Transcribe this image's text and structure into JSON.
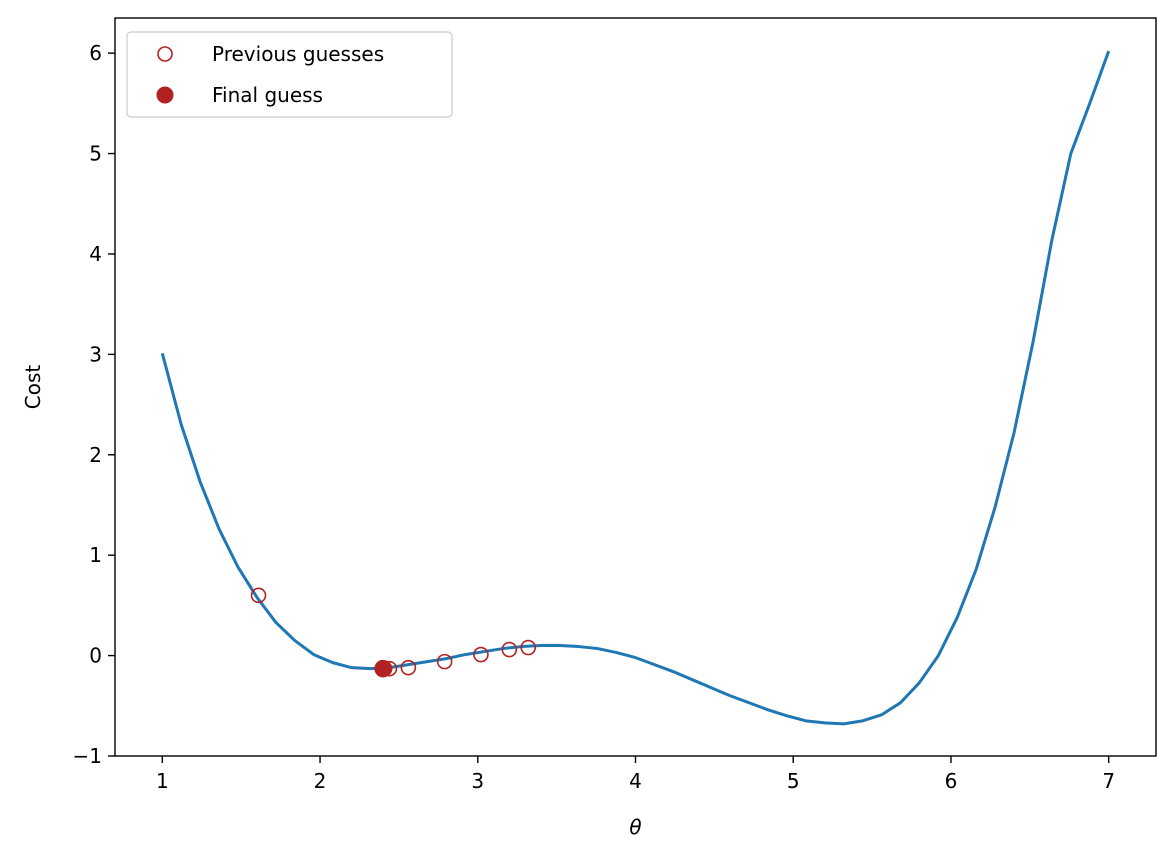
{
  "chart_data": {
    "type": "line",
    "xlabel": "θ",
    "ylabel": "Cost",
    "xlim": [
      0.7,
      7.3
    ],
    "ylim": [
      -1.0,
      6.35
    ],
    "xticks": [
      1,
      2,
      3,
      4,
      5,
      6,
      7
    ],
    "yticks": [
      -1,
      0,
      1,
      2,
      3,
      4,
      5,
      6
    ],
    "xtick_labels": [
      "1",
      "2",
      "3",
      "4",
      "5",
      "6",
      "7"
    ],
    "ytick_labels": [
      "−1",
      "0",
      "1",
      "2",
      "3",
      "4",
      "5",
      "6"
    ],
    "grid": false,
    "legend_position": "top-left",
    "line_color": "#1f77b4",
    "marker_color": "#b22222",
    "curve": {
      "x": [
        1.0,
        1.12,
        1.24,
        1.36,
        1.48,
        1.6,
        1.72,
        1.84,
        1.96,
        2.08,
        2.2,
        2.32,
        2.44,
        2.56,
        2.68,
        2.8,
        2.92,
        3.04,
        3.16,
        3.28,
        3.4,
        3.52,
        3.64,
        3.76,
        3.88,
        4.0,
        4.12,
        4.24,
        4.36,
        4.48,
        4.6,
        4.72,
        4.84,
        4.96,
        5.08,
        5.2,
        5.32,
        5.44,
        5.56,
        5.68,
        5.8,
        5.92,
        6.04,
        6.16,
        6.28,
        6.4,
        6.52,
        6.64,
        6.76,
        6.88,
        7.0
      ],
      "y": [
        3.01,
        2.3,
        1.73,
        1.26,
        0.88,
        0.58,
        0.33,
        0.15,
        0.01,
        -0.07,
        -0.12,
        -0.13,
        -0.12,
        -0.09,
        -0.06,
        -0.03,
        0.01,
        0.04,
        0.07,
        0.09,
        0.1,
        0.1,
        0.09,
        0.07,
        0.03,
        -0.02,
        -0.09,
        -0.16,
        -0.24,
        -0.32,
        -0.4,
        -0.47,
        -0.54,
        -0.6,
        -0.65,
        -0.67,
        -0.68,
        -0.65,
        -0.59,
        -0.47,
        -0.27,
        -0.0,
        0.38,
        0.86,
        1.48,
        2.22,
        3.12,
        4.14,
        5.0,
        5.5,
        6.02
      ]
    },
    "series": [
      {
        "name": "Previous guesses",
        "style": "open-circle",
        "x": [
          1.61,
          3.32,
          3.2,
          3.02,
          2.79,
          2.56,
          2.44,
          2.41,
          2.4
        ],
        "y": [
          0.6,
          0.08,
          0.06,
          0.01,
          -0.06,
          -0.12,
          -0.13,
          -0.13,
          -0.13
        ]
      },
      {
        "name": "Final guess",
        "style": "filled-circle",
        "x": [
          2.4
        ],
        "y": [
          -0.13
        ]
      }
    ]
  }
}
